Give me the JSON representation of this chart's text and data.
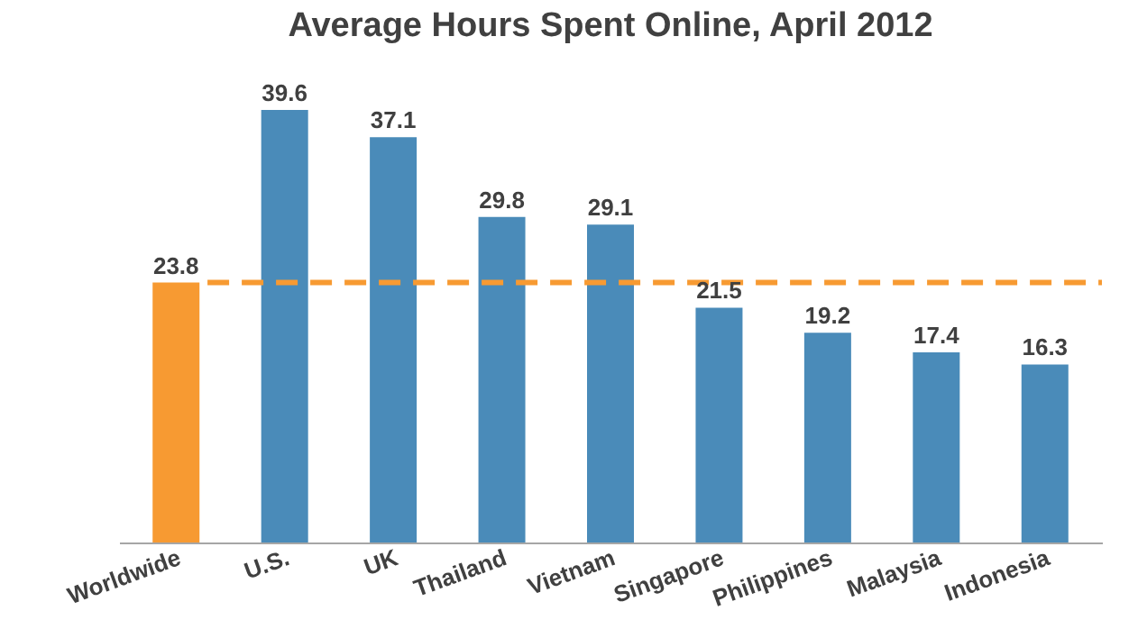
{
  "chart_data": {
    "type": "bar",
    "title": "Average Hours Spent Online, April 2012",
    "categories": [
      "Worldwide",
      "U.S.",
      "UK",
      "Thailand",
      "Vietnam",
      "Singapore",
      "Philippines",
      "Malaysia",
      "Indonesia"
    ],
    "values": [
      23.8,
      39.6,
      37.1,
      29.8,
      29.1,
      21.5,
      19.2,
      17.4,
      16.3
    ],
    "colors": [
      "#f79a32",
      "#4a8bb9",
      "#4a8bb9",
      "#4a8bb9",
      "#4a8bb9",
      "#4a8bb9",
      "#4a8bb9",
      "#4a8bb9",
      "#4a8bb9"
    ],
    "ref_lines": [
      {
        "axis": "y",
        "value": 23.8,
        "color": "#f79a32",
        "line_style": "dashed"
      }
    ],
    "data_labels": true,
    "tick_labels": "x",
    "grid": false
  }
}
